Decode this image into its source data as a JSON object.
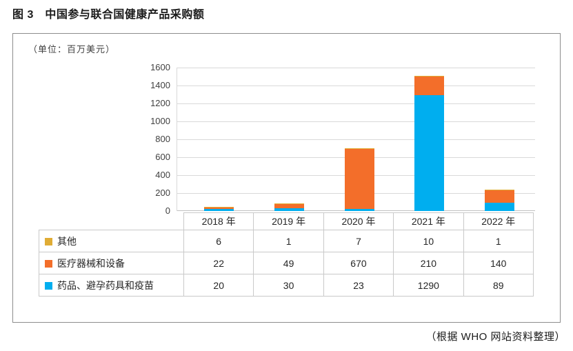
{
  "figure": {
    "title": "图 3　中国参与联合国健康产品采购额",
    "unit_note": "（单位：百万美元）",
    "source_note": "（根据 WHO 网站资料整理）"
  },
  "chart_data": {
    "type": "bar",
    "stacked": true,
    "title": "中国参与联合国健康产品采购额",
    "xlabel": "",
    "ylabel": "百万美元",
    "categories": [
      "2018 年",
      "2019 年",
      "2020 年",
      "2021 年",
      "2022 年"
    ],
    "series": [
      {
        "name": "药品、避孕药具和疫苗",
        "color": "#00AEEF",
        "values": [
          20,
          30,
          23,
          1290,
          89
        ]
      },
      {
        "name": "医疗器械和设备",
        "color": "#F36E2A",
        "values": [
          22,
          49,
          670,
          210,
          140
        ]
      },
      {
        "name": "其他",
        "color": "#E0AC35",
        "values": [
          6,
          1,
          7,
          10,
          1
        ]
      }
    ],
    "ylim": [
      0,
      1600
    ],
    "yticks": [
      0,
      200,
      400,
      600,
      800,
      1000,
      1200,
      1400,
      1600
    ],
    "grid": true,
    "legend_position": "table-left",
    "table_row_order": [
      "其他",
      "医疗器械和设备",
      "药品、避孕药具和疫苗"
    ]
  }
}
